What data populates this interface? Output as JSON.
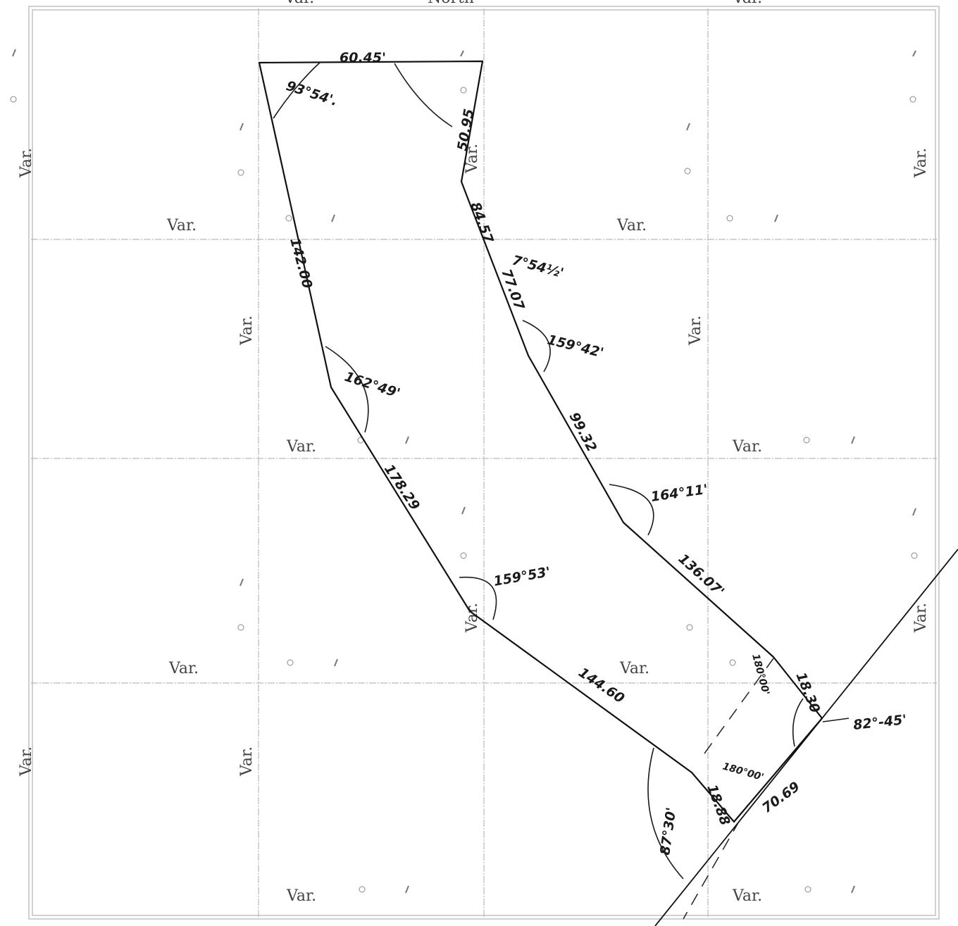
{
  "sheet": {
    "top_labels": [
      "Var.",
      "North",
      "Var."
    ],
    "grid_labels": {
      "var": "Var."
    }
  },
  "plot": {
    "boundary_dimensions": {
      "north_side": "60.45'",
      "north_east_side": "50.95",
      "east_upper_1": "84.57",
      "east_upper_2": "77.07",
      "east_middle": "99.32",
      "east_lower": "136.07'",
      "west_upper": "142.00",
      "west_middle": "178.29",
      "south_side": "144.60",
      "front_short_a": "18.30",
      "front_short_b": "18.88",
      "front_main": "70.69"
    },
    "angles": {
      "nw_corner": "93°54'.",
      "east_bend_1": "7°54½'",
      "east_bend_2": "159°42'",
      "west_bend_1": "162°49'",
      "east_bend_3": "164°11'",
      "west_bend_2": "159°53'",
      "se_corner_a": "180°00'",
      "se_corner_b": "180°00'",
      "road_angle_1": "82°-45'",
      "road_angle_2": "87°30'"
    }
  }
}
